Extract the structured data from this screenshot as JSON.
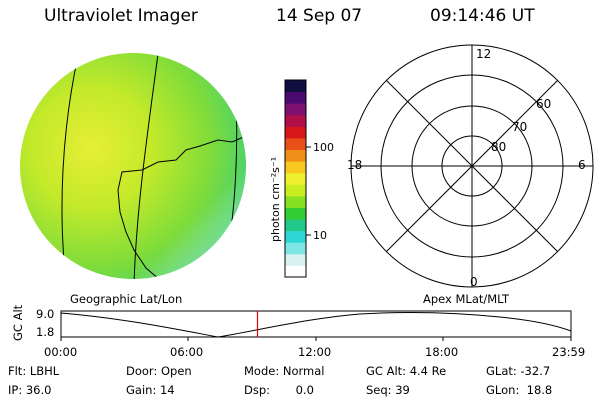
{
  "header": {
    "instrument": "Ultraviolet Imager",
    "date": "14 Sep 07",
    "time": "09:14:46 UT"
  },
  "colorbar": {
    "unit_label": "photon cm⁻²s⁻¹",
    "ticks": [
      "100",
      "10"
    ],
    "colors": [
      "#ffffff",
      "#d8f2f2",
      "#7fe6e6",
      "#2fd6d6",
      "#22c88a",
      "#33cc33",
      "#88e022",
      "#c8ee22",
      "#f0f030",
      "#f8c820",
      "#f09018",
      "#e85018",
      "#d81818",
      "#b01048",
      "#801070",
      "#4a0a70",
      "#101040"
    ]
  },
  "polar": {
    "labels": {
      "top": "12",
      "bottom": "0",
      "left": "18",
      "right": "6"
    },
    "rings": [
      "60",
      "70",
      "80"
    ]
  },
  "map": {
    "left_caption": "Geographic Lat/Lon",
    "right_caption": "Apex MLat/MLT"
  },
  "timeline": {
    "ylabel": "GC Alt",
    "y_ticks": [
      "9.0",
      "1.8"
    ],
    "x_ticks": [
      "00:00",
      "06:00",
      "12:00",
      "18:00",
      "23:59"
    ],
    "current_time_hours": 9.246
  },
  "info": {
    "flt": "Flt: LBHL",
    "door": "Door: Open",
    "mode": "Mode: Normal",
    "gc_alt": "GC Alt: 4.4 Re",
    "glat": "GLat: -32.7",
    "ip": "IP: 36.0",
    "gain": "Gain: 14",
    "dsp": "Dsp:       0.0",
    "seq": "Seq: 39",
    "glon": "GLon:  18.8"
  }
}
